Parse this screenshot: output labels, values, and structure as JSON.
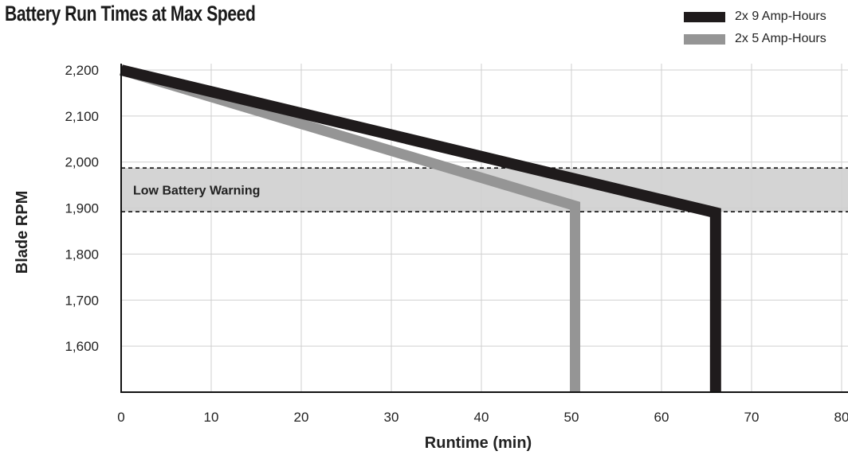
{
  "chart_data": {
    "type": "line",
    "title": "Battery Run Times at Max Speed",
    "xlabel": "Runtime (min)",
    "ylabel": "Blade RPM",
    "xlim": [
      0,
      80
    ],
    "ylim": [
      1500,
      2200
    ],
    "xticks": [
      0,
      10,
      20,
      30,
      40,
      50,
      60,
      70,
      80
    ],
    "xtick_labels": [
      "0",
      "10",
      "20",
      "30",
      "40",
      "50",
      "60",
      "70",
      "80"
    ],
    "yticks": [
      1600,
      1700,
      1800,
      1900,
      2000,
      2100,
      2200
    ],
    "ytick_labels": [
      "1,600",
      "1,700",
      "1,800",
      "1,900",
      "2,000",
      "2,100",
      "2,200"
    ],
    "grid": true,
    "legend": "top-right",
    "series": [
      {
        "name": "2x 9 Amp-Hours",
        "color": "#1f1b1c",
        "x": [
          0,
          66,
          66
        ],
        "y": [
          2200,
          1890,
          1500
        ]
      },
      {
        "name": "2x 5 Amp-Hours",
        "color": "#959595",
        "x": [
          0,
          50.4,
          50.4
        ],
        "y": [
          2200,
          1905,
          1500
        ]
      }
    ],
    "annotations": [
      {
        "type": "band",
        "label": "Low Battery Warning",
        "y_from": 1892,
        "y_to": 1987,
        "color": "#d4d4d4"
      }
    ]
  }
}
